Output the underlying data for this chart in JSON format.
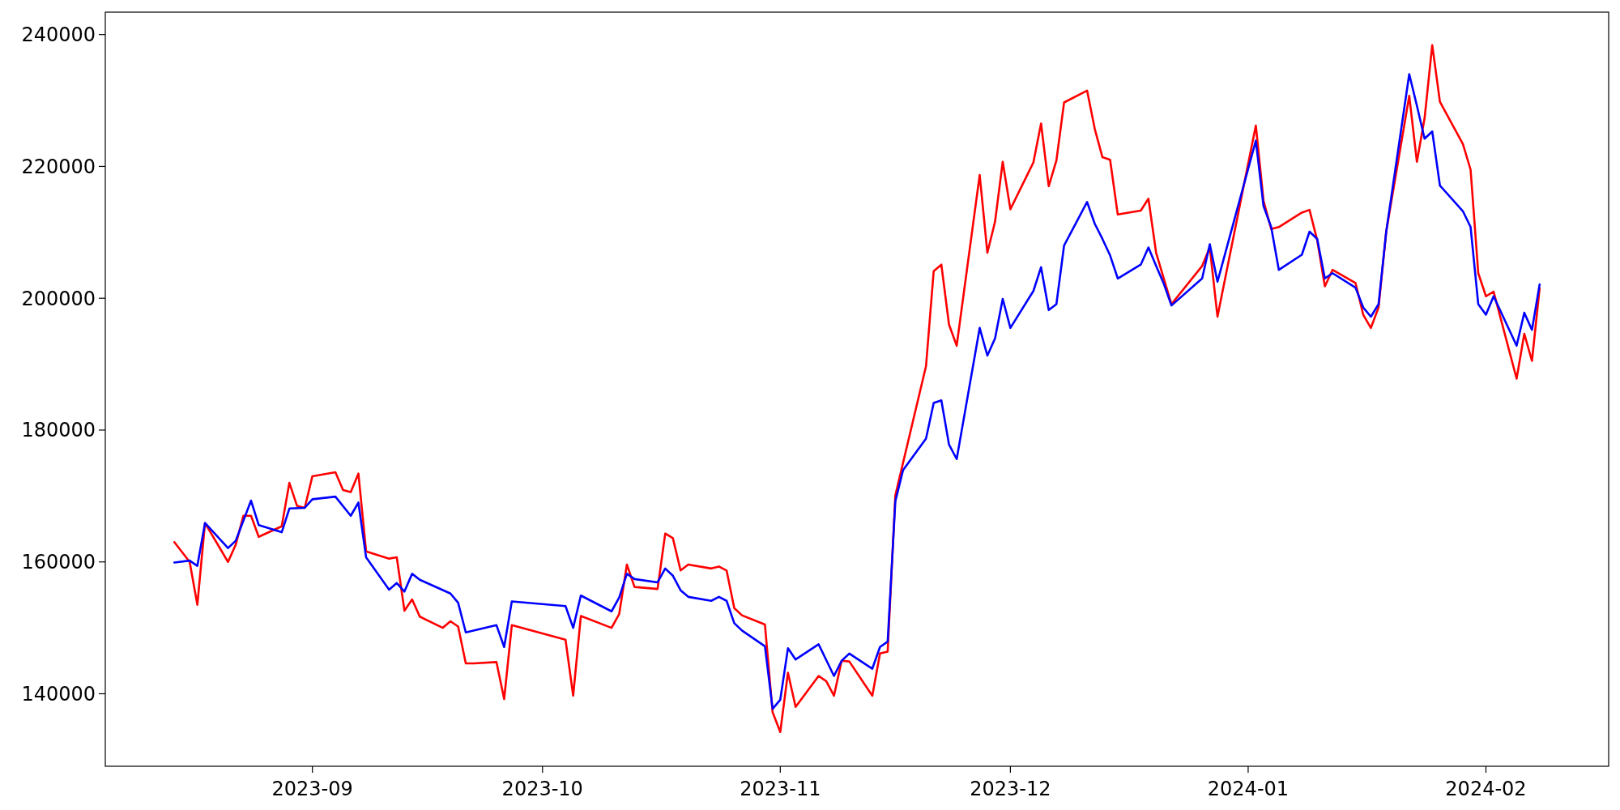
{
  "chart_data": {
    "type": "line",
    "xlim": [
      "2023-08-05",
      "2024-02-17"
    ],
    "ylim": [
      129000,
      243400
    ],
    "xticks": [
      {
        "value": "2023-09-01",
        "label": "2023-09"
      },
      {
        "value": "2023-10-01",
        "label": "2023-10"
      },
      {
        "value": "2023-11-01",
        "label": "2023-11"
      },
      {
        "value": "2023-12-01",
        "label": "2023-12"
      },
      {
        "value": "2024-01-01",
        "label": "2024-01"
      },
      {
        "value": "2024-02-01",
        "label": "2024-02"
      }
    ],
    "yticks": [
      140000,
      160000,
      180000,
      200000,
      220000,
      240000
    ],
    "grid": false,
    "marker": "none",
    "line_style": "solid",
    "series": [
      {
        "color": "#ff0000",
        "x": [
          "2023-08-14",
          "2023-08-16",
          "2023-08-17",
          "2023-08-18",
          "2023-08-21",
          "2023-08-22",
          "2023-08-23",
          "2023-08-24",
          "2023-08-25",
          "2023-08-28",
          "2023-08-29",
          "2023-08-30",
          "2023-08-31",
          "2023-09-01",
          "2023-09-04",
          "2023-09-05",
          "2023-09-06",
          "2023-09-07",
          "2023-09-08",
          "2023-09-11",
          "2023-09-12",
          "2023-09-13",
          "2023-09-14",
          "2023-09-15",
          "2023-09-18",
          "2023-09-19",
          "2023-09-20",
          "2023-09-21",
          "2023-09-22",
          "2023-09-25",
          "2023-09-26",
          "2023-09-27",
          "2023-10-04",
          "2023-10-05",
          "2023-10-06",
          "2023-10-10",
          "2023-10-11",
          "2023-10-12",
          "2023-10-13",
          "2023-10-16",
          "2023-10-17",
          "2023-10-18",
          "2023-10-19",
          "2023-10-20",
          "2023-10-23",
          "2023-10-24",
          "2023-10-25",
          "2023-10-26",
          "2023-10-27",
          "2023-10-30",
          "2023-10-31",
          "2023-11-01",
          "2023-11-02",
          "2023-11-03",
          "2023-11-06",
          "2023-11-07",
          "2023-11-08",
          "2023-11-09",
          "2023-11-10",
          "2023-11-13",
          "2023-11-14",
          "2023-11-15",
          "2023-11-16",
          "2023-11-20",
          "2023-11-21",
          "2023-11-22",
          "2023-11-23",
          "2023-11-24",
          "2023-11-27",
          "2023-11-28",
          "2023-11-29",
          "2023-11-30",
          "2023-12-01",
          "2023-12-04",
          "2023-12-05",
          "2023-12-06",
          "2023-12-07",
          "2023-12-08",
          "2023-12-11",
          "2023-12-12",
          "2023-12-13",
          "2023-12-14",
          "2023-12-15",
          "2023-12-18",
          "2023-12-19",
          "2023-12-20",
          "2023-12-21",
          "2023-12-22",
          "2023-12-26",
          "2023-12-27",
          "2023-12-28",
          "2024-01-02",
          "2024-01-03",
          "2024-01-04",
          "2024-01-05",
          "2024-01-08",
          "2024-01-09",
          "2024-01-10",
          "2024-01-11",
          "2024-01-12",
          "2024-01-15",
          "2024-01-16",
          "2024-01-17",
          "2024-01-18",
          "2024-01-19",
          "2024-01-22",
          "2024-01-23",
          "2024-01-24",
          "2024-01-25",
          "2024-01-26",
          "2024-01-29",
          "2024-01-30",
          "2024-01-31",
          "2024-02-01",
          "2024-02-02",
          "2024-02-05",
          "2024-02-06",
          "2024-02-07",
          "2024-02-08"
        ],
        "values": [
          163000,
          160000,
          153500,
          165900,
          160000,
          162600,
          167000,
          167000,
          163800,
          165400,
          172000,
          168500,
          168200,
          173000,
          173600,
          170900,
          170600,
          173400,
          161600,
          160500,
          160700,
          152600,
          154300,
          151700,
          150000,
          151000,
          150200,
          144600,
          144600,
          144800,
          139200,
          150400,
          148200,
          139700,
          151800,
          150000,
          152100,
          159600,
          156200,
          155900,
          164300,
          163600,
          158700,
          159600,
          159000,
          159300,
          158700,
          153000,
          151900,
          150500,
          137200,
          134200,
          143200,
          138000,
          142700,
          141900,
          139700,
          145000,
          144900,
          139700,
          146100,
          146400,
          170100,
          189700,
          204100,
          205100,
          196000,
          192800,
          218700,
          206900,
          211600,
          220700,
          213500,
          220600,
          226500,
          217000,
          220900,
          229700,
          231500,
          225700,
          221400,
          221000,
          212700,
          213300,
          215100,
          206900,
          203000,
          199100,
          204900,
          207700,
          197200,
          226200,
          214800,
          210500,
          210800,
          213000,
          213400,
          208800,
          201800,
          204300,
          202300,
          197500,
          195500,
          198600,
          210100,
          230700,
          220700,
          227300,
          238400,
          229800,
          223400,
          219500,
          203800,
          200300,
          201000,
          187800,
          194600,
          190500,
          201500
        ]
      },
      {
        "color": "#0000ff",
        "x": [
          "2023-08-14",
          "2023-08-16",
          "2023-08-17",
          "2023-08-18",
          "2023-08-21",
          "2023-08-22",
          "2023-08-24",
          "2023-08-25",
          "2023-08-28",
          "2023-08-29",
          "2023-08-31",
          "2023-09-01",
          "2023-09-04",
          "2023-09-06",
          "2023-09-07",
          "2023-09-08",
          "2023-09-11",
          "2023-09-12",
          "2023-09-13",
          "2023-09-14",
          "2023-09-15",
          "2023-09-19",
          "2023-09-20",
          "2023-09-21",
          "2023-09-25",
          "2023-09-26",
          "2023-09-27",
          "2023-10-04",
          "2023-10-05",
          "2023-10-06",
          "2023-10-10",
          "2023-10-11",
          "2023-10-12",
          "2023-10-13",
          "2023-10-16",
          "2023-10-17",
          "2023-10-18",
          "2023-10-19",
          "2023-10-20",
          "2023-10-23",
          "2023-10-24",
          "2023-10-25",
          "2023-10-26",
          "2023-10-27",
          "2023-10-30",
          "2023-10-31",
          "2023-11-01",
          "2023-11-02",
          "2023-11-03",
          "2023-11-06",
          "2023-11-08",
          "2023-11-09",
          "2023-11-10",
          "2023-11-13",
          "2023-11-14",
          "2023-11-15",
          "2023-11-16",
          "2023-11-17",
          "2023-11-20",
          "2023-11-21",
          "2023-11-22",
          "2023-11-23",
          "2023-11-24",
          "2023-11-27",
          "2023-11-28",
          "2023-11-29",
          "2023-11-30",
          "2023-12-01",
          "2023-12-04",
          "2023-12-05",
          "2023-12-06",
          "2023-12-07",
          "2023-12-08",
          "2023-12-11",
          "2023-12-12",
          "2023-12-13",
          "2023-12-14",
          "2023-12-15",
          "2023-12-18",
          "2023-12-19",
          "2023-12-20",
          "2023-12-21",
          "2023-12-22",
          "2023-12-26",
          "2023-12-27",
          "2023-12-28",
          "2024-01-02",
          "2024-01-03",
          "2024-01-04",
          "2024-01-05",
          "2024-01-08",
          "2024-01-09",
          "2024-01-10",
          "2024-01-11",
          "2024-01-12",
          "2024-01-15",
          "2024-01-16",
          "2024-01-17",
          "2024-01-18",
          "2024-01-19",
          "2024-01-22",
          "2024-01-23",
          "2024-01-24",
          "2024-01-25",
          "2024-01-26",
          "2024-01-29",
          "2024-01-30",
          "2024-01-31",
          "2024-02-01",
          "2024-02-02",
          "2024-02-05",
          "2024-02-06",
          "2024-02-07",
          "2024-02-08"
        ],
        "values": [
          159900,
          160200,
          159400,
          165900,
          162100,
          163200,
          169300,
          165600,
          164500,
          168100,
          168200,
          169500,
          169900,
          167000,
          169000,
          160700,
          155800,
          156800,
          155500,
          158200,
          157300,
          155200,
          153800,
          149300,
          150400,
          147100,
          154000,
          153300,
          150000,
          154900,
          152500,
          154600,
          158200,
          157400,
          156900,
          159000,
          157900,
          155700,
          154700,
          154100,
          154700,
          154100,
          150700,
          149600,
          147200,
          137700,
          139100,
          146900,
          145200,
          147500,
          142700,
          145000,
          146100,
          143800,
          147100,
          147900,
          169200,
          173900,
          178700,
          184100,
          184500,
          177800,
          175600,
          195500,
          191300,
          193900,
          199900,
          195500,
          201100,
          204700,
          198200,
          199100,
          208000,
          214600,
          211300,
          209000,
          206500,
          203000,
          205100,
          207700,
          204900,
          202200,
          198900,
          203000,
          208200,
          202500,
          223900,
          214000,
          210800,
          204300,
          206600,
          210100,
          209000,
          203000,
          203800,
          201600,
          198600,
          197200,
          199100,
          210100,
          234000,
          229200,
          224200,
          225300,
          217100,
          213200,
          210800,
          199100,
          197500,
          200300,
          192800,
          197800,
          195200,
          202100
        ]
      }
    ]
  }
}
